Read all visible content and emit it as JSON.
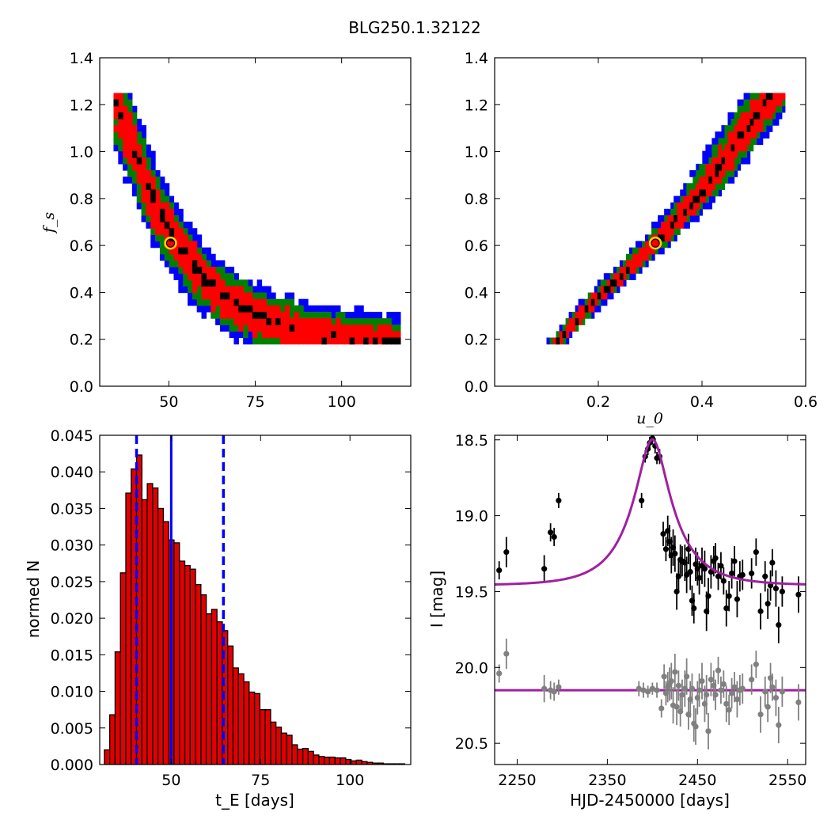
{
  "figure": {
    "title": "BLG250.1.32122"
  },
  "colors": {
    "sigma1": "#ff0000",
    "sigma2": "#008000",
    "sigma3": "#0000ff",
    "sample": "#000000",
    "best_fit_marker": "#ffd700",
    "hist_bar": "#e00000",
    "hist_line": "#0000ff",
    "model": "#a020a0",
    "data": "#000000",
    "residual": "#808080"
  },
  "chart_data": [
    {
      "id": "fs_vs_tE",
      "type": "heatmap",
      "xlabel": "",
      "ylabel": "f_s",
      "xlim": [
        30,
        120
      ],
      "ylim": [
        0.0,
        1.4
      ],
      "xticks": [
        50,
        75,
        100
      ],
      "xtick_labels": [
        "50",
        "75",
        "100"
      ],
      "yticks": [
        0.0,
        0.2,
        0.4,
        0.6,
        0.8,
        1.0,
        1.2,
        1.4
      ],
      "ytick_labels": [
        "0.0",
        "0.2",
        "0.4",
        "0.6",
        "0.8",
        "1.0",
        "1.2",
        "1.4"
      ],
      "regions": [
        "sigma3",
        "sigma2",
        "sigma1",
        "samples"
      ],
      "ridge": {
        "x": [
          34,
          38,
          42,
          46,
          50,
          55,
          60,
          65,
          70,
          75,
          80,
          85,
          90,
          95,
          100,
          105,
          110
        ],
        "y": [
          1.24,
          1.08,
          0.92,
          0.78,
          0.66,
          0.55,
          0.46,
          0.39,
          0.34,
          0.3,
          0.27,
          0.245,
          0.225,
          0.21,
          0.2,
          0.19,
          0.185
        ]
      },
      "best_fit": {
        "x": 50.5,
        "y": 0.61
      }
    },
    {
      "id": "fs_vs_u0",
      "type": "heatmap",
      "xlabel": "u_0",
      "ylabel": "",
      "xlim": [
        0.0,
        0.6
      ],
      "ylim": [
        0.0,
        1.4
      ],
      "xticks": [
        0.2,
        0.4,
        0.6
      ],
      "xtick_labels": [
        "0.2",
        "0.4",
        "0.6"
      ],
      "yticks": [
        0.0,
        0.2,
        0.4,
        0.6,
        0.8,
        1.0,
        1.2,
        1.4
      ],
      "ytick_labels": [
        "0.0",
        "0.2",
        "0.4",
        "0.6",
        "0.8",
        "1.0",
        "1.2",
        "1.4"
      ],
      "regions": [
        "sigma3",
        "sigma2",
        "sigma1",
        "samples"
      ],
      "ridge": {
        "x": [
          0.115,
          0.2,
          0.31,
          0.4,
          0.5,
          0.535
        ],
        "y": [
          0.18,
          0.38,
          0.61,
          0.83,
          1.14,
          1.24
        ]
      },
      "best_fit": {
        "x": 0.31,
        "y": 0.61
      }
    },
    {
      "id": "tE_histogram",
      "type": "bar",
      "xlabel": "t_E [days]",
      "ylabel": "normed N",
      "xlim": [
        30,
        117
      ],
      "ylim": [
        0.0,
        0.045
      ],
      "xticks": [
        50,
        75,
        100
      ],
      "xtick_labels": [
        "50",
        "75",
        "100"
      ],
      "yticks": [
        0.0,
        0.005,
        0.01,
        0.015,
        0.02,
        0.025,
        0.03,
        0.035,
        0.04,
        0.045
      ],
      "ytick_labels": [
        "0.000",
        "0.005",
        "0.010",
        "0.015",
        "0.020",
        "0.025",
        "0.030",
        "0.035",
        "0.040",
        "0.045"
      ],
      "bin_start": 31.3,
      "bin_width": 1.5,
      "values": [
        0.002,
        0.0068,
        0.0154,
        0.0262,
        0.0371,
        0.0404,
        0.0423,
        0.0362,
        0.0384,
        0.0378,
        0.035,
        0.0332,
        0.0307,
        0.0303,
        0.0278,
        0.0272,
        0.0267,
        0.0246,
        0.0232,
        0.0206,
        0.0212,
        0.0195,
        0.0183,
        0.0162,
        0.0132,
        0.0124,
        0.0113,
        0.0099,
        0.0097,
        0.0075,
        0.0075,
        0.0058,
        0.0051,
        0.0043,
        0.004,
        0.0027,
        0.0021,
        0.0022,
        0.0018,
        0.0013,
        0.0011,
        0.001,
        0.001,
        0.0009,
        0.0009,
        0.0007,
        0.0005,
        0.0006,
        0.0004,
        0.0003,
        0.0002,
        0.0002,
        0.0001,
        0.0001,
        0.0001,
        0.0001
      ],
      "median": 50,
      "interval": [
        40.3,
        64.6
      ]
    },
    {
      "id": "light_curve",
      "type": "scatter",
      "xlabel": "HJD-2450000 [days]",
      "ylabel": "I [mag]",
      "xlim": [
        2225,
        2570
      ],
      "ylim": [
        20.64,
        18.47
      ],
      "y_inverted": true,
      "xticks": [
        2250,
        2350,
        2450,
        2550
      ],
      "xtick_labels": [
        "2250",
        "2350",
        "2450",
        "2550"
      ],
      "yticks": [
        18.5,
        19.0,
        19.5,
        20.0,
        20.5
      ],
      "ytick_labels": [
        "18.5",
        "19.0",
        "19.5",
        "20.0",
        "20.5"
      ],
      "model": {
        "t0": 2400,
        "tE": 50.5,
        "u0": 0.31,
        "fs": 0.61,
        "I_base": 19.46
      },
      "residual_offset": 20.15,
      "series": [
        {
          "role": "data",
          "points": [
            [
              2230,
              19.36,
              0.06
            ],
            [
              2238,
              19.24,
              0.1
            ],
            [
              2280,
              19.35,
              0.09
            ],
            [
              2287,
              19.11,
              0.06
            ],
            [
              2291,
              19.14,
              0.06
            ],
            [
              2296,
              18.9,
              0.05
            ],
            [
              2388,
              18.9,
              0.05
            ],
            [
              2392,
              18.61,
              0.04
            ],
            [
              2395,
              18.56,
              0.04
            ],
            [
              2397,
              18.52,
              0.04
            ],
            [
              2400,
              18.49,
              0.04
            ],
            [
              2403,
              18.54,
              0.05
            ],
            [
              2405,
              18.62,
              0.04
            ],
            [
              2408,
              18.61,
              0.05
            ],
            [
              2412,
              19.12,
              0.08
            ],
            [
              2415,
              19.22,
              0.08
            ],
            [
              2417,
              19.1,
              0.1
            ],
            [
              2419,
              19.17,
              0.11
            ],
            [
              2421,
              19.26,
              0.12
            ],
            [
              2423,
              19.21,
              0.12
            ],
            [
              2425,
              19.25,
              0.12
            ],
            [
              2427,
              19.5,
              0.12
            ],
            [
              2429,
              19.4,
              0.1
            ],
            [
              2431,
              19.29,
              0.1
            ],
            [
              2433,
              19.3,
              0.1
            ],
            [
              2436,
              19.31,
              0.12
            ],
            [
              2438,
              19.39,
              0.12
            ],
            [
              2440,
              19.22,
              0.1
            ],
            [
              2442,
              19.37,
              0.12
            ],
            [
              2444,
              19.56,
              0.1
            ],
            [
              2446,
              19.61,
              0.1
            ],
            [
              2448,
              19.32,
              0.11
            ],
            [
              2450,
              19.35,
              0.11
            ],
            [
              2452,
              19.41,
              0.11
            ],
            [
              2455,
              19.33,
              0.12
            ],
            [
              2458,
              19.35,
              0.12
            ],
            [
              2460,
              19.63,
              0.13
            ],
            [
              2462,
              19.53,
              0.12
            ],
            [
              2465,
              19.37,
              0.11
            ],
            [
              2468,
              19.3,
              0.1
            ],
            [
              2470,
              19.28,
              0.1
            ],
            [
              2473,
              19.4,
              0.09
            ],
            [
              2476,
              19.33,
              0.09
            ],
            [
              2479,
              19.43,
              0.09
            ],
            [
              2482,
              19.61,
              0.12
            ],
            [
              2485,
              19.53,
              0.1
            ],
            [
              2488,
              19.38,
              0.1
            ],
            [
              2491,
              19.3,
              0.1
            ],
            [
              2494,
              19.55,
              0.12
            ],
            [
              2497,
              19.4,
              0.1
            ],
            [
              2500,
              19.39,
              0.1
            ],
            [
              2510,
              19.38,
              0.1
            ],
            [
              2515,
              19.24,
              0.09
            ],
            [
              2520,
              19.63,
              0.12
            ],
            [
              2525,
              19.4,
              0.1
            ],
            [
              2528,
              19.58,
              0.1
            ],
            [
              2531,
              19.46,
              0.1
            ],
            [
              2533,
              19.31,
              0.09
            ],
            [
              2537,
              19.48,
              0.12
            ],
            [
              2540,
              19.72,
              0.12
            ],
            [
              2544,
              19.5,
              0.1
            ],
            [
              2562,
              19.52,
              0.12
            ]
          ]
        },
        {
          "role": "residual",
          "points": [
            [
              2230,
              20.04,
              0.06
            ],
            [
              2238,
              19.91,
              0.1
            ],
            [
              2280,
              20.14,
              0.09
            ],
            [
              2287,
              20.15,
              0.06
            ],
            [
              2291,
              20.16,
              0.06
            ],
            [
              2296,
              20.13,
              0.05
            ],
            [
              2385,
              20.14,
              0.05
            ],
            [
              2390,
              20.15,
              0.05
            ],
            [
              2395,
              20.16,
              0.04
            ],
            [
              2400,
              20.14,
              0.04
            ],
            [
              2405,
              20.15,
              0.05
            ],
            [
              2410,
              20.27,
              0.06
            ],
            [
              2413,
              20.06,
              0.08
            ],
            [
              2415,
              20.17,
              0.08
            ],
            [
              2417,
              20.13,
              0.1
            ],
            [
              2419,
              20.11,
              0.11
            ],
            [
              2421,
              20.09,
              0.12
            ],
            [
              2423,
              20.25,
              0.12
            ],
            [
              2425,
              20.03,
              0.12
            ],
            [
              2427,
              20.26,
              0.12
            ],
            [
              2429,
              20.12,
              0.1
            ],
            [
              2431,
              20.29,
              0.1
            ],
            [
              2433,
              20.18,
              0.1
            ],
            [
              2436,
              20.14,
              0.12
            ],
            [
              2438,
              20.06,
              0.12
            ],
            [
              2440,
              20.31,
              0.1
            ],
            [
              2442,
              20.21,
              0.12
            ],
            [
              2444,
              20.14,
              0.1
            ],
            [
              2446,
              20.37,
              0.12
            ],
            [
              2448,
              20.39,
              0.12
            ],
            [
              2450,
              20.2,
              0.11
            ],
            [
              2452,
              20.15,
              0.11
            ],
            [
              2455,
              20.09,
              0.12
            ],
            [
              2458,
              20.24,
              0.12
            ],
            [
              2460,
              20.18,
              0.13
            ],
            [
              2462,
              20.42,
              0.12
            ],
            [
              2465,
              20.08,
              0.11
            ],
            [
              2468,
              20.12,
              0.1
            ],
            [
              2470,
              20.18,
              0.1
            ],
            [
              2473,
              20.02,
              0.09
            ],
            [
              2476,
              20.15,
              0.09
            ],
            [
              2479,
              20.11,
              0.09
            ],
            [
              2482,
              20.24,
              0.12
            ],
            [
              2485,
              20.28,
              0.1
            ],
            [
              2488,
              20.17,
              0.1
            ],
            [
              2491,
              20.13,
              0.1
            ],
            [
              2494,
              20.21,
              0.12
            ],
            [
              2497,
              20.15,
              0.1
            ],
            [
              2500,
              20.14,
              0.1
            ],
            [
              2510,
              20.08,
              0.1
            ],
            [
              2515,
              19.98,
              0.09
            ],
            [
              2520,
              20.31,
              0.12
            ],
            [
              2525,
              20.16,
              0.1
            ],
            [
              2528,
              20.26,
              0.1
            ],
            [
              2531,
              20.07,
              0.1
            ],
            [
              2533,
              20.13,
              0.09
            ],
            [
              2537,
              20.2,
              0.12
            ],
            [
              2540,
              20.38,
              0.12
            ],
            [
              2544,
              20.16,
              0.1
            ],
            [
              2562,
              20.23,
              0.12
            ]
          ]
        }
      ]
    }
  ]
}
